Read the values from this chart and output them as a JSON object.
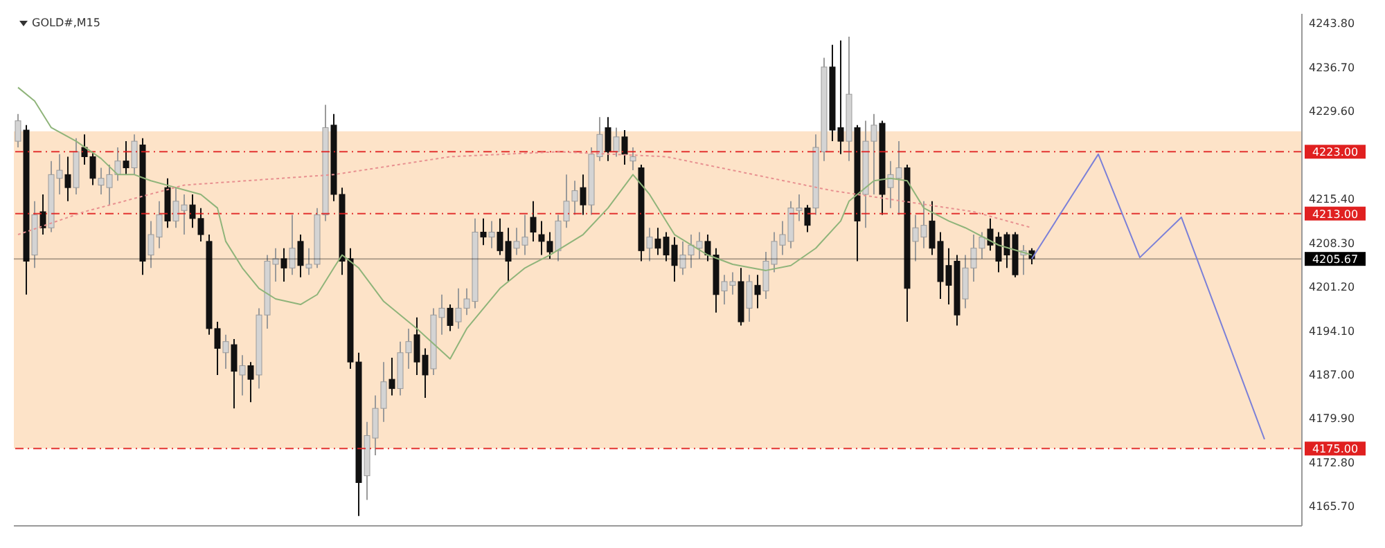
{
  "chart_data": {
    "type": "candlestick",
    "title": "GOLD#,M15",
    "tick_labels": "y",
    "marker": "none",
    "yticks": [
      {
        "value": 4243.8,
        "label": "4243.80"
      },
      {
        "value": 4236.7,
        "label": "4236.70"
      },
      {
        "value": 4229.6,
        "label": "4229.60"
      },
      {
        "value": 4215.4,
        "label": "4215.40"
      },
      {
        "value": 4208.3,
        "label": "4208.30"
      },
      {
        "value": 4201.2,
        "label": "4201.20"
      },
      {
        "value": 4194.1,
        "label": "4194.10"
      },
      {
        "value": 4187,
        "label": "4187.00"
      },
      {
        "value": 4179.9,
        "label": "4179.90"
      },
      {
        "value": 4172.8,
        "label": "4172.80"
      },
      {
        "value": 4165.7,
        "label": "4165.70"
      }
    ],
    "categories": [
      null,
      null,
      null,
      null,
      null,
      null,
      null,
      null,
      null,
      null,
      null,
      null,
      null,
      null,
      null,
      null,
      null,
      null,
      null,
      null,
      null,
      null,
      null,
      null,
      null,
      null,
      null,
      null,
      null,
      null,
      null,
      null,
      null,
      null,
      null,
      null,
      null,
      null,
      null,
      null,
      null,
      null,
      null,
      null,
      null,
      null,
      null,
      null,
      null,
      null,
      null,
      null,
      null,
      null,
      null,
      null,
      null,
      null,
      null,
      null,
      null,
      null,
      null,
      null,
      null,
      null,
      null,
      null,
      null,
      null,
      null,
      null,
      null,
      null,
      null,
      null,
      null,
      null,
      null,
      null,
      null,
      null,
      null,
      null,
      null,
      null,
      null,
      null,
      null,
      null,
      null,
      null,
      null,
      null,
      null,
      null,
      null,
      null,
      null,
      null,
      null,
      null,
      null,
      null,
      null,
      null,
      null,
      null,
      null,
      null,
      null,
      null,
      null,
      null,
      null,
      null,
      null,
      null,
      null,
      null,
      null,
      null,
      null,
      null,
      null,
      null,
      null,
      null,
      null,
      null,
      null,
      null,
      null,
      null,
      null,
      null,
      null,
      null,
      null,
      null,
      null,
      null,
      null,
      null,
      null,
      null,
      null,
      null,
      null,
      null,
      null,
      null,
      null,
      null,
      null
    ],
    "ylim": [
      4162.5,
      4245.3
    ],
    "ohlc": [
      [
        4224.7,
        4229.1,
        4223.7,
        4228.0
      ],
      [
        4226.5,
        4227.3,
        4199.9,
        4205.3
      ],
      [
        4206.3,
        4215.0,
        4204.2,
        4212.8
      ],
      [
        4213.3,
        4216.1,
        4209.6,
        4210.7
      ],
      [
        4210.7,
        4221.5,
        4210.0,
        4219.3
      ],
      [
        4218.7,
        4222.6,
        4216.1,
        4220.0
      ],
      [
        4219.3,
        4222.2,
        4215.0,
        4217.2
      ],
      [
        4217.2,
        4225.2,
        4216.1,
        4223.0
      ],
      [
        4223.7,
        4225.8,
        4220.9,
        4222.2
      ],
      [
        4222.2,
        4223.0,
        4217.6,
        4218.7
      ],
      [
        4217.6,
        4220.4,
        4216.1,
        4218.7
      ],
      [
        4217.2,
        4220.9,
        4214.4,
        4219.3
      ],
      [
        4219.3,
        4223.7,
        4218.3,
        4221.5
      ],
      [
        4221.5,
        4224.7,
        4219.3,
        4220.4
      ],
      [
        4220.4,
        4225.8,
        4219.3,
        4224.7
      ],
      [
        4224.1,
        4225.2,
        4203.1,
        4205.3
      ],
      [
        4206.3,
        4211.8,
        4204.2,
        4209.6
      ],
      [
        4209.2,
        4215.0,
        4207.4,
        4212.8
      ],
      [
        4217.2,
        4218.7,
        4210.7,
        4211.8
      ],
      [
        4211.8,
        4217.2,
        4210.7,
        4215.0
      ],
      [
        4213.5,
        4216.1,
        4209.6,
        4214.4
      ],
      [
        4214.4,
        4216.1,
        4210.7,
        4212.2
      ],
      [
        4212.2,
        4213.9,
        4208.5,
        4209.6
      ],
      [
        4208.5,
        4209.6,
        4193.4,
        4194.4
      ],
      [
        4194.4,
        4195.5,
        4186.9,
        4191.2
      ],
      [
        4190.5,
        4193.4,
        4187.9,
        4192.3
      ],
      [
        4191.8,
        4192.7,
        4181.5,
        4187.5
      ],
      [
        4186.9,
        4190.1,
        4183.6,
        4188.4
      ],
      [
        4188.4,
        4189.0,
        4182.5,
        4186.2
      ],
      [
        4186.9,
        4197.7,
        4184.7,
        4196.6
      ],
      [
        4196.6,
        4206.3,
        4194.4,
        4205.3
      ],
      [
        4204.8,
        4207.4,
        4202.0,
        4205.7
      ],
      [
        4205.7,
        4207.4,
        4202.0,
        4204.2
      ],
      [
        4204.2,
        4212.8,
        4203.1,
        4207.4
      ],
      [
        4208.5,
        4209.6,
        4202.7,
        4204.6
      ],
      [
        4204.2,
        4207.4,
        4203.1,
        4204.8
      ],
      [
        4204.8,
        4213.9,
        4204.2,
        4212.8
      ],
      [
        4212.8,
        4230.6,
        4211.8,
        4226.9
      ],
      [
        4227.3,
        4229.1,
        4215.0,
        4216.1
      ],
      [
        4216.1,
        4217.2,
        4203.1,
        4205.3
      ],
      [
        4205.7,
        4207.4,
        4187.9,
        4189.0
      ],
      [
        4189.0,
        4190.5,
        4164.1,
        4169.5
      ],
      [
        4170.6,
        4179.3,
        4166.7,
        4177.1
      ],
      [
        4176.7,
        4183.6,
        4173.9,
        4181.5
      ],
      [
        4181.5,
        4189.0,
        4179.3,
        4185.8
      ],
      [
        4186.2,
        4189.7,
        4183.6,
        4184.7
      ],
      [
        4184.7,
        4192.3,
        4183.6,
        4190.5
      ],
      [
        4190.5,
        4194.4,
        4187.9,
        4192.3
      ],
      [
        4193.4,
        4196.2,
        4186.9,
        4189.0
      ],
      [
        4190.1,
        4191.2,
        4183.2,
        4186.9
      ],
      [
        4187.9,
        4197.7,
        4186.9,
        4196.6
      ],
      [
        4196.2,
        4199.9,
        4193.4,
        4197.7
      ],
      [
        4197.7,
        4198.3,
        4194.0,
        4194.9
      ],
      [
        4195.5,
        4200.9,
        4194.4,
        4197.7
      ],
      [
        4197.7,
        4200.9,
        4196.6,
        4199.2
      ],
      [
        4198.8,
        4212.2,
        4197.7,
        4210.0
      ],
      [
        4210.0,
        4212.2,
        4207.9,
        4209.2
      ],
      [
        4209.2,
        4211.8,
        4207.4,
        4210.0
      ],
      [
        4210.0,
        4212.2,
        4206.3,
        4207.0
      ],
      [
        4208.5,
        4210.7,
        4202.0,
        4205.3
      ],
      [
        4207.4,
        4210.7,
        4206.3,
        4208.5
      ],
      [
        4207.9,
        4212.8,
        4206.3,
        4209.2
      ],
      [
        4212.4,
        4215.0,
        4208.5,
        4210.0
      ],
      [
        4209.6,
        4211.8,
        4206.3,
        4208.5
      ],
      [
        4208.5,
        4210.0,
        4205.7,
        4206.8
      ],
      [
        4207.0,
        4212.8,
        4205.3,
        4211.8
      ],
      [
        4211.8,
        4219.3,
        4210.7,
        4215.0
      ],
      [
        4215.0,
        4218.3,
        4212.8,
        4216.7
      ],
      [
        4217.2,
        4219.3,
        4212.8,
        4214.4
      ],
      [
        4214.4,
        4223.7,
        4212.8,
        4222.6
      ],
      [
        4222.2,
        4228.6,
        4221.5,
        4225.8
      ],
      [
        4226.9,
        4228.6,
        4221.5,
        4223.0
      ],
      [
        4223.0,
        4226.9,
        4222.2,
        4225.4
      ],
      [
        4225.4,
        4226.5,
        4220.9,
        4222.6
      ],
      [
        4221.5,
        4223.7,
        4220.0,
        4222.2
      ],
      [
        4220.4,
        4220.9,
        4205.3,
        4207.0
      ],
      [
        4207.4,
        4210.7,
        4205.3,
        4209.2
      ],
      [
        4208.9,
        4210.7,
        4206.3,
        4207.4
      ],
      [
        4209.2,
        4210.0,
        4205.3,
        4206.3
      ],
      [
        4207.9,
        4209.2,
        4202.0,
        4204.6
      ],
      [
        4204.2,
        4208.5,
        4203.1,
        4206.3
      ],
      [
        4206.3,
        4209.6,
        4204.2,
        4207.9
      ],
      [
        4207.4,
        4210.0,
        4205.7,
        4208.5
      ],
      [
        4208.5,
        4209.6,
        4205.3,
        4206.3
      ],
      [
        4206.3,
        4207.4,
        4197.0,
        4199.9
      ],
      [
        4200.5,
        4203.1,
        4198.3,
        4202.0
      ],
      [
        4201.4,
        4203.5,
        4199.9,
        4202.0
      ],
      [
        4202.0,
        4204.2,
        4194.9,
        4195.5
      ],
      [
        4197.7,
        4203.1,
        4195.5,
        4202.0
      ],
      [
        4201.4,
        4203.1,
        4197.7,
        4199.9
      ],
      [
        4200.5,
        4206.8,
        4199.2,
        4205.3
      ],
      [
        4204.8,
        4210.0,
        4203.5,
        4208.5
      ],
      [
        4207.9,
        4211.8,
        4206.3,
        4209.6
      ],
      [
        4208.5,
        4215.0,
        4207.4,
        4213.9
      ],
      [
        4213.5,
        4216.1,
        4211.8,
        4213.9
      ],
      [
        4213.9,
        4214.4,
        4210.0,
        4211.1
      ],
      [
        4213.9,
        4225.8,
        4212.8,
        4223.7
      ],
      [
        4223.0,
        4238.2,
        4221.5,
        4236.7
      ],
      [
        4236.7,
        4240.3,
        4224.7,
        4226.5
      ],
      [
        4226.9,
        4241.0,
        4222.6,
        4224.7
      ],
      [
        4224.7,
        4241.6,
        4221.5,
        4232.3
      ],
      [
        4226.9,
        4227.3,
        4205.3,
        4211.8
      ],
      [
        4216.1,
        4228.0,
        4210.7,
        4224.7
      ],
      [
        4224.7,
        4229.1,
        4216.1,
        4227.3
      ],
      [
        4227.6,
        4228.0,
        4212.8,
        4216.1
      ],
      [
        4217.2,
        4221.5,
        4213.9,
        4219.3
      ],
      [
        4218.7,
        4224.7,
        4212.8,
        4220.4
      ],
      [
        4220.4,
        4220.9,
        4195.5,
        4200.9
      ],
      [
        4208.5,
        4212.8,
        4205.3,
        4210.7
      ],
      [
        4209.2,
        4215.0,
        4207.4,
        4211.1
      ],
      [
        4211.8,
        4215.0,
        4206.3,
        4207.4
      ],
      [
        4208.5,
        4210.0,
        4199.2,
        4202.0
      ],
      [
        4204.6,
        4207.4,
        4198.3,
        4201.4
      ],
      [
        4205.3,
        4206.3,
        4194.9,
        4196.6
      ],
      [
        4199.2,
        4206.3,
        4197.7,
        4204.2
      ],
      [
        4204.2,
        4209.6,
        4202.0,
        4207.4
      ],
      [
        4207.4,
        4210.0,
        4205.7,
        4209.2
      ],
      [
        4210.5,
        4212.2,
        4207.0,
        4207.9
      ],
      [
        4209.2,
        4210.0,
        4203.5,
        4205.3
      ],
      [
        4209.6,
        4210.0,
        4204.2,
        4206.3
      ],
      [
        4209.6,
        4210.0,
        4202.7,
        4203.1
      ],
      [
        4206.3,
        4207.9,
        4203.1,
        4207.0
      ],
      [
        4207.0,
        4207.4,
        4204.8,
        4205.7
      ],
      null,
      null,
      null,
      null,
      null,
      null,
      null,
      null,
      null,
      null,
      null,
      null,
      null,
      null,
      null,
      null,
      null,
      null,
      null,
      null,
      null,
      null,
      null,
      null,
      null,
      null,
      null,
      null,
      null,
      null,
      null,
      null
    ],
    "series": [
      {
        "type": "line",
        "color": "#8fb47a",
        "line_style": "solid",
        "values": [
          4233.4,
          null,
          4231.2,
          null,
          4226.9,
          null,
          null,
          4224.7,
          null,
          null,
          4221.9,
          null,
          4219.3,
          null,
          4219.3,
          null,
          4218.3,
          null,
          null,
          4217.2,
          null,
          null,
          4216.1,
          null,
          4213.9,
          4208.5,
          null,
          4204.2,
          null,
          4200.9,
          null,
          4199.2,
          null,
          null,
          4198.3,
          null,
          4199.9,
          null,
          4204.2,
          4206.3,
          null,
          4204.2,
          null,
          null,
          4198.8,
          null,
          null,
          null,
          4194.4,
          null,
          null,
          null,
          4189.5,
          null,
          4194.4,
          null,
          null,
          null,
          4200.9,
          null,
          null,
          4204.2,
          null,
          null,
          4206.3,
          null,
          null,
          null,
          4209.6,
          null,
          null,
          4213.9,
          null,
          null,
          4219.3,
          null,
          4216.1,
          null,
          null,
          4209.6,
          null,
          null,
          null,
          4206.3,
          null,
          null,
          4204.8,
          null,
          null,
          null,
          4203.8,
          null,
          null,
          4204.6,
          null,
          null,
          4207.4,
          null,
          null,
          4211.8,
          4215.0,
          null,
          null,
          4218.3,
          null,
          4218.7,
          null,
          4218.3,
          null,
          4213.9,
          null,
          null,
          4211.8,
          null,
          4210.7,
          null,
          null,
          null,
          4207.9,
          null,
          null,
          null,
          4206.3,
          null,
          null,
          null,
          null,
          null,
          null,
          null,
          null,
          null,
          null,
          null,
          null,
          null,
          null,
          null,
          null,
          null,
          null,
          null,
          null,
          null,
          null,
          null,
          null,
          null,
          null,
          null,
          null,
          null,
          null,
          null,
          null
        ]
      },
      {
        "type": "line",
        "color": "#e89090",
        "line_style": "dotted",
        "values": [
          4209.6,
          null,
          null,
          null,
          null,
          null,
          null,
          null,
          4213.3,
          null,
          null,
          null,
          null,
          null,
          null,
          null,
          null,
          null,
          null,
          null,
          4217.6,
          null,
          null,
          null,
          null,
          null,
          null,
          null,
          null,
          null,
          null,
          null,
          null,
          null,
          null,
          null,
          null,
          null,
          4219.3,
          null,
          null,
          null,
          null,
          null,
          null,
          null,
          null,
          null,
          null,
          null,
          null,
          null,
          4222.2,
          null,
          null,
          null,
          null,
          null,
          null,
          null,
          null,
          null,
          null,
          null,
          null,
          4223.0,
          null,
          null,
          null,
          null,
          null,
          null,
          null,
          null,
          null,
          null,
          null,
          null,
          4222.2,
          null,
          null,
          null,
          null,
          null,
          null,
          null,
          null,
          null,
          null,
          null,
          null,
          null,
          null,
          null,
          null,
          null,
          null,
          null,
          4216.7,
          null,
          null,
          null,
          null,
          null,
          null,
          null,
          null,
          null,
          null,
          null,
          null,
          null,
          null,
          null,
          null,
          4213.3,
          null,
          null,
          null,
          null,
          null,
          null,
          4210.7,
          null,
          null,
          null,
          null,
          null,
          null,
          null,
          null,
          null,
          null,
          null,
          null,
          null,
          null,
          null,
          null,
          null,
          null,
          null,
          null,
          null,
          null,
          null,
          null,
          null,
          null,
          null,
          null,
          null,
          null,
          null,
          null
        ]
      },
      {
        "type": "line",
        "color": "#7b80d8",
        "line_style": "solid",
        "values": [
          null,
          null,
          null,
          null,
          null,
          null,
          null,
          null,
          null,
          null,
          null,
          null,
          null,
          null,
          null,
          null,
          null,
          null,
          null,
          null,
          null,
          null,
          null,
          null,
          null,
          null,
          null,
          null,
          null,
          null,
          null,
          null,
          null,
          null,
          null,
          null,
          null,
          null,
          null,
          null,
          null,
          null,
          null,
          null,
          null,
          null,
          null,
          null,
          null,
          null,
          null,
          null,
          null,
          null,
          null,
          null,
          null,
          null,
          null,
          null,
          null,
          null,
          null,
          null,
          null,
          null,
          null,
          null,
          null,
          null,
          null,
          null,
          null,
          null,
          null,
          null,
          null,
          null,
          null,
          null,
          null,
          null,
          null,
          null,
          null,
          null,
          null,
          null,
          null,
          null,
          null,
          null,
          null,
          null,
          null,
          null,
          null,
          null,
          null,
          null,
          null,
          null,
          null,
          null,
          null,
          null,
          null,
          null,
          null,
          null,
          null,
          null,
          null,
          null,
          null,
          null,
          null,
          null,
          null,
          null,
          null,
          null,
          4205.7,
          null,
          null,
          null,
          null,
          null,
          null,
          null,
          4222.6,
          null,
          null,
          null,
          null,
          4205.9,
          null,
          null,
          null,
          null,
          4212.4,
          null,
          null,
          null,
          null,
          null,
          null,
          null,
          null,
          null,
          4176.5,
          null,
          null,
          null,
          null
        ]
      }
    ],
    "ref_lines": [
      {
        "axis": "y",
        "value": 4223,
        "label": "4223.00",
        "color": "#e02020",
        "line_style": "dashed"
      },
      {
        "axis": "y",
        "value": 4213,
        "label": "4213.00",
        "color": "#e02020",
        "line_style": "dashed"
      },
      {
        "axis": "y",
        "value": 4205.67,
        "label": "4205.67",
        "color": "#000000",
        "line_style": "solid"
      },
      {
        "axis": "y",
        "value": 4175,
        "label": "4175.00",
        "color": "#e02020",
        "line_style": "dashed"
      }
    ],
    "bands": [
      {
        "axis": "y",
        "from": 4175,
        "to": 4226.3,
        "color": "#fde3c8"
      }
    ]
  }
}
